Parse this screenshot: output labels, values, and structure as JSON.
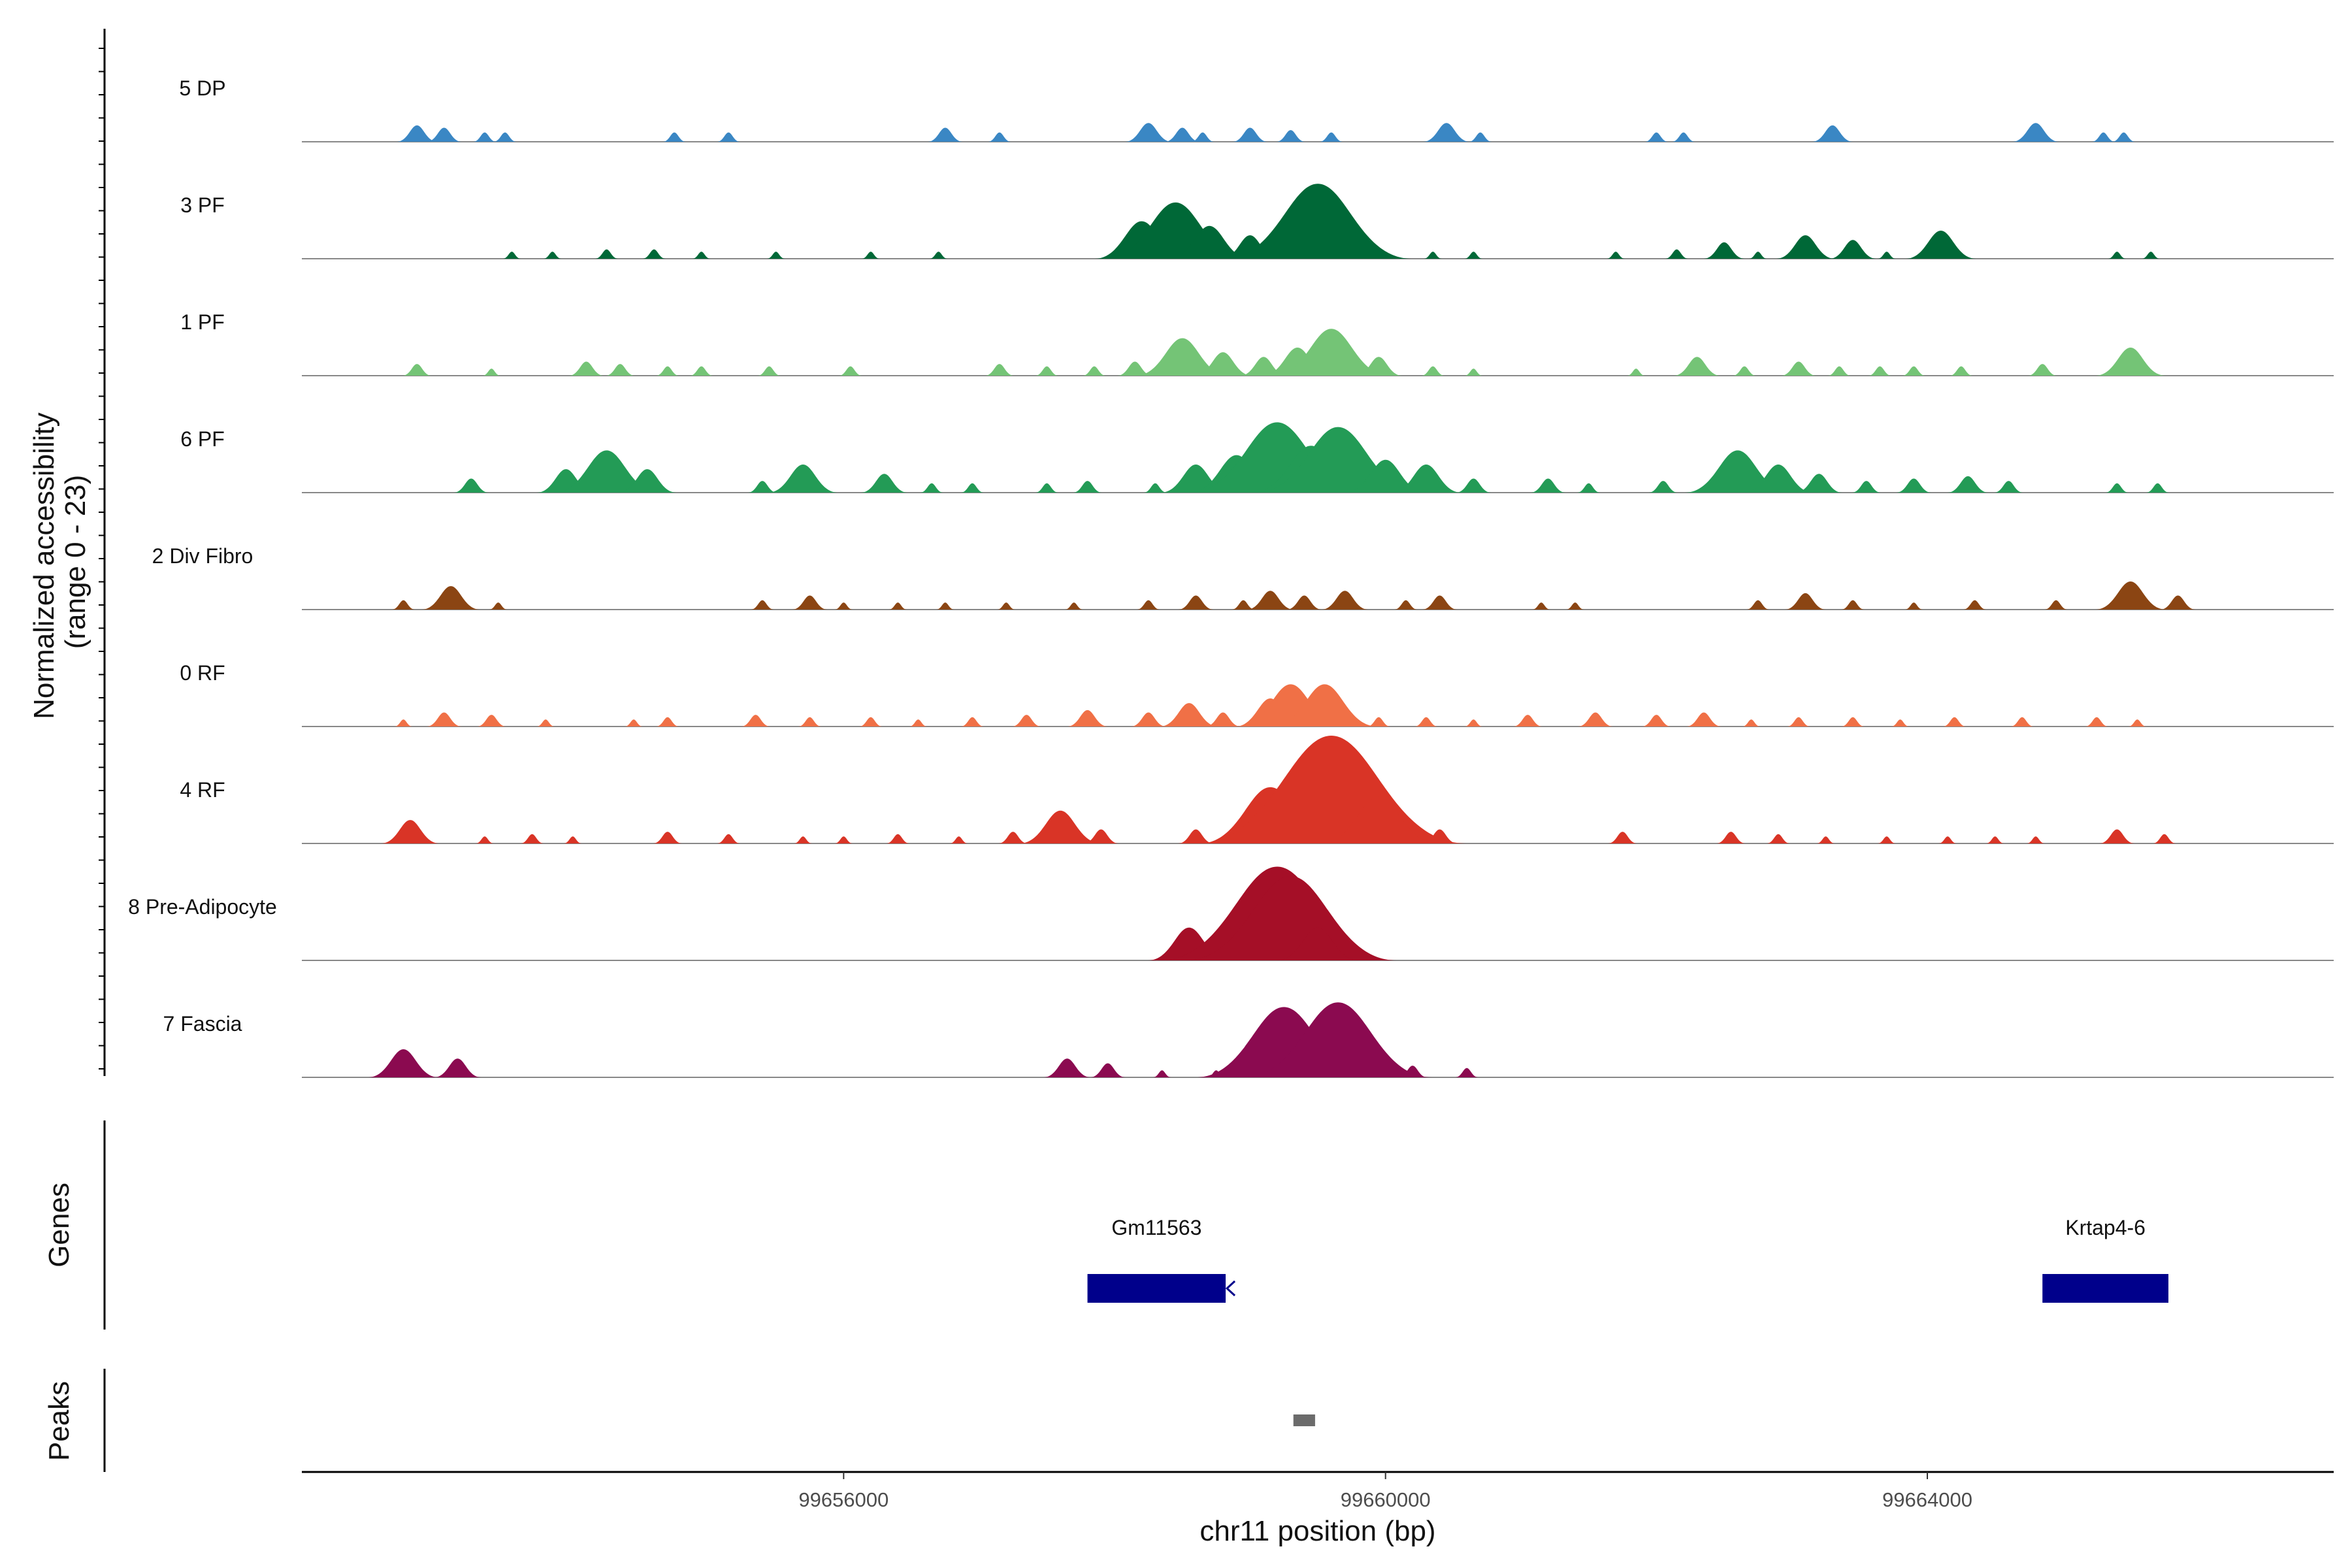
{
  "chart_data": {
    "type": "area",
    "title": "",
    "ylabel_line1": "Normalized accessibility",
    "ylabel_line2": "(range 0 - 23)",
    "xlabel": "chr11 position (bp)",
    "y_range": [
      0,
      23
    ],
    "x_range": [
      99652000,
      99667000
    ],
    "x_ticks": [
      {
        "value": 99656000,
        "label": "99656000"
      },
      {
        "value": 99660000,
        "label": "99660000"
      },
      {
        "value": 99664000,
        "label": "99664000"
      }
    ],
    "tracks": [
      {
        "name": "5 DP",
        "color": "#3A87C4",
        "peaks": [
          [
            99652850,
            3.5
          ],
          [
            99653050,
            3
          ],
          [
            99653350,
            2
          ],
          [
            99653500,
            2
          ],
          [
            99654750,
            2
          ],
          [
            99655150,
            2
          ],
          [
            99656750,
            3
          ],
          [
            99657150,
            2
          ],
          [
            99658250,
            4
          ],
          [
            99658500,
            3
          ],
          [
            99658650,
            2
          ],
          [
            99659000,
            3
          ],
          [
            99659300,
            2.5
          ],
          [
            99659600,
            2
          ],
          [
            99660450,
            4
          ],
          [
            99660700,
            2
          ],
          [
            99662000,
            2
          ],
          [
            99662200,
            2
          ],
          [
            99663300,
            3.5
          ],
          [
            99664800,
            4
          ],
          [
            99665300,
            2
          ],
          [
            99665450,
            2
          ]
        ]
      },
      {
        "name": "3 PF",
        "color": "#006837",
        "peaks": [
          [
            99653550,
            1.5
          ],
          [
            99653850,
            1.5
          ],
          [
            99654250,
            2
          ],
          [
            99654600,
            2
          ],
          [
            99654950,
            1.5
          ],
          [
            99655500,
            1.5
          ],
          [
            99656200,
            1.5
          ],
          [
            99656700,
            1.5
          ],
          [
            99658200,
            8
          ],
          [
            99658450,
            12
          ],
          [
            99658700,
            7
          ],
          [
            99659000,
            5
          ],
          [
            99659300,
            9
          ],
          [
            99659500,
            16
          ],
          [
            99659750,
            3
          ],
          [
            99660350,
            1.5
          ],
          [
            99660650,
            1.5
          ],
          [
            99661700,
            1.5
          ],
          [
            99662150,
            2
          ],
          [
            99662500,
            3.5
          ],
          [
            99662750,
            1.5
          ],
          [
            99663100,
            5
          ],
          [
            99663450,
            4
          ],
          [
            99663700,
            1.5
          ],
          [
            99664100,
            6
          ],
          [
            99665400,
            1.5
          ],
          [
            99665650,
            1.5
          ]
        ]
      },
      {
        "name": "1 PF",
        "color": "#74C476",
        "peaks": [
          [
            99652850,
            2.5
          ],
          [
            99653400,
            1.5
          ],
          [
            99654100,
            3
          ],
          [
            99654350,
            2.5
          ],
          [
            99654700,
            2
          ],
          [
            99654950,
            2
          ],
          [
            99655450,
            2
          ],
          [
            99656050,
            2
          ],
          [
            99657150,
            2.5
          ],
          [
            99657500,
            2
          ],
          [
            99657850,
            2
          ],
          [
            99658150,
            3
          ],
          [
            99658500,
            8
          ],
          [
            99658800,
            5
          ],
          [
            99659100,
            4
          ],
          [
            99659350,
            6
          ],
          [
            99659600,
            10
          ],
          [
            99659950,
            4
          ],
          [
            99660350,
            2
          ],
          [
            99660650,
            1.5
          ],
          [
            99661850,
            1.5
          ],
          [
            99662300,
            4
          ],
          [
            99662650,
            2
          ],
          [
            99663050,
            3
          ],
          [
            99663350,
            2
          ],
          [
            99663650,
            2
          ],
          [
            99663900,
            2
          ],
          [
            99664250,
            2
          ],
          [
            99664850,
            2.5
          ],
          [
            99665500,
            6
          ]
        ]
      },
      {
        "name": "6 PF",
        "color": "#239B56",
        "peaks": [
          [
            99653250,
            3
          ],
          [
            99653950,
            5
          ],
          [
            99654250,
            9
          ],
          [
            99654550,
            5
          ],
          [
            99655400,
            2.5
          ],
          [
            99655700,
            6
          ],
          [
            99656300,
            4
          ],
          [
            99656650,
            2
          ],
          [
            99656950,
            2
          ],
          [
            99657500,
            2
          ],
          [
            99657800,
            2.5
          ],
          [
            99658300,
            2
          ],
          [
            99658600,
            6
          ],
          [
            99658900,
            8
          ],
          [
            99659200,
            15
          ],
          [
            99659450,
            10
          ],
          [
            99659650,
            14
          ],
          [
            99660000,
            7
          ],
          [
            99660300,
            6
          ],
          [
            99660650,
            3
          ],
          [
            99661200,
            3
          ],
          [
            99661500,
            2
          ],
          [
            99662050,
            2.5
          ],
          [
            99662600,
            9
          ],
          [
            99662900,
            6
          ],
          [
            99663200,
            4
          ],
          [
            99663550,
            2.5
          ],
          [
            99663900,
            3
          ],
          [
            99664300,
            3.5
          ],
          [
            99664600,
            2.5
          ],
          [
            99665400,
            2
          ],
          [
            99665700,
            2
          ]
        ]
      },
      {
        "name": "2 Div Fibro",
        "color": "#8B4513",
        "peaks": [
          [
            99652750,
            2
          ],
          [
            99653100,
            5
          ],
          [
            99653450,
            1.5
          ],
          [
            99655400,
            2
          ],
          [
            99655750,
            3
          ],
          [
            99656000,
            1.5
          ],
          [
            99656400,
            1.5
          ],
          [
            99656750,
            1.5
          ],
          [
            99657200,
            1.5
          ],
          [
            99657700,
            1.5
          ],
          [
            99658250,
            2
          ],
          [
            99658600,
            3
          ],
          [
            99658950,
            2
          ],
          [
            99659150,
            4
          ],
          [
            99659400,
            3
          ],
          [
            99659700,
            4
          ],
          [
            99660150,
            2
          ],
          [
            99660400,
            3
          ],
          [
            99661150,
            1.5
          ],
          [
            99661400,
            1.5
          ],
          [
            99662750,
            2
          ],
          [
            99663100,
            3.5
          ],
          [
            99663450,
            2
          ],
          [
            99663900,
            1.5
          ],
          [
            99664350,
            2
          ],
          [
            99664950,
            2
          ],
          [
            99665500,
            6
          ],
          [
            99665850,
            3
          ]
        ]
      },
      {
        "name": "0 RF",
        "color": "#F07046",
        "peaks": [
          [
            99652750,
            1.5
          ],
          [
            99653050,
            3
          ],
          [
            99653400,
            2.5
          ],
          [
            99653800,
            1.5
          ],
          [
            99654450,
            1.5
          ],
          [
            99654700,
            2
          ],
          [
            99655350,
            2.5
          ],
          [
            99655750,
            2
          ],
          [
            99656200,
            2
          ],
          [
            99656550,
            1.5
          ],
          [
            99656950,
            2
          ],
          [
            99657350,
            2.5
          ],
          [
            99657800,
            3.5
          ],
          [
            99658250,
            3
          ],
          [
            99658550,
            5
          ],
          [
            99658800,
            3
          ],
          [
            99659150,
            6
          ],
          [
            99659300,
            9
          ],
          [
            99659550,
            9
          ],
          [
            99659950,
            2
          ],
          [
            99660300,
            2
          ],
          [
            99660650,
            1.5
          ],
          [
            99661050,
            2.5
          ],
          [
            99661550,
            3
          ],
          [
            99662000,
            2.5
          ],
          [
            99662350,
            3
          ],
          [
            99662700,
            1.5
          ],
          [
            99663050,
            2
          ],
          [
            99663450,
            2
          ],
          [
            99663800,
            1.5
          ],
          [
            99664200,
            2
          ],
          [
            99664700,
            2
          ],
          [
            99665250,
            2
          ],
          [
            99665550,
            1.5
          ]
        ]
      },
      {
        "name": "4 RF",
        "color": "#D93426",
        "peaks": [
          [
            99652800,
            5
          ],
          [
            99653350,
            1.5
          ],
          [
            99653700,
            2
          ],
          [
            99654000,
            1.5
          ],
          [
            99654700,
            2.5
          ],
          [
            99655150,
            2
          ],
          [
            99655700,
            1.5
          ],
          [
            99656000,
            1.5
          ],
          [
            99656400,
            2
          ],
          [
            99656850,
            1.5
          ],
          [
            99657250,
            2.5
          ],
          [
            99657600,
            7
          ],
          [
            99657900,
            3
          ],
          [
            99658600,
            3
          ],
          [
            99658900,
            3
          ],
          [
            99659150,
            12
          ],
          [
            99659450,
            14
          ],
          [
            99659600,
            23
          ],
          [
            99659950,
            10
          ],
          [
            99660400,
            3
          ],
          [
            99661750,
            2.5
          ],
          [
            99662550,
            2.5
          ],
          [
            99662900,
            2
          ],
          [
            99663250,
            1.5
          ],
          [
            99663700,
            1.5
          ],
          [
            99664150,
            1.5
          ],
          [
            99664500,
            1.5
          ],
          [
            99664800,
            1.5
          ],
          [
            99665400,
            3
          ],
          [
            99665750,
            2
          ]
        ]
      },
      {
        "name": "8 Pre-Adipocyte",
        "color": "#A50F27",
        "peaks": [
          [
            99658550,
            7
          ],
          [
            99658800,
            7
          ],
          [
            99659200,
            20
          ],
          [
            99659300,
            18
          ],
          [
            99659500,
            7
          ]
        ]
      },
      {
        "name": "7 Fascia",
        "color": "#8B0A50",
        "peaks": [
          [
            99652750,
            6
          ],
          [
            99653150,
            4
          ],
          [
            99657650,
            4
          ],
          [
            99657950,
            3
          ],
          [
            99658350,
            1.5
          ],
          [
            99658750,
            1.5
          ],
          [
            99659050,
            5
          ],
          [
            99659250,
            15
          ],
          [
            99659650,
            16
          ],
          [
            99660200,
            2.5
          ],
          [
            99660600,
            2
          ]
        ]
      }
    ],
    "genes_track_label": "Genes",
    "genes": [
      {
        "name": "Gm11563",
        "start": 99657800,
        "end": 99658820,
        "strand": "-",
        "color": "#00008B"
      },
      {
        "name": "Krtap4-6",
        "start": 99664850,
        "end": 99665780,
        "strand": "+",
        "color": "#00008B"
      }
    ],
    "peaks_track_label": "Peaks",
    "peak_regions": [
      {
        "start": 99659320,
        "end": 99659480,
        "color": "#6B6B6B"
      }
    ],
    "baseline_color": "#888888",
    "axis_color": "#000000"
  }
}
